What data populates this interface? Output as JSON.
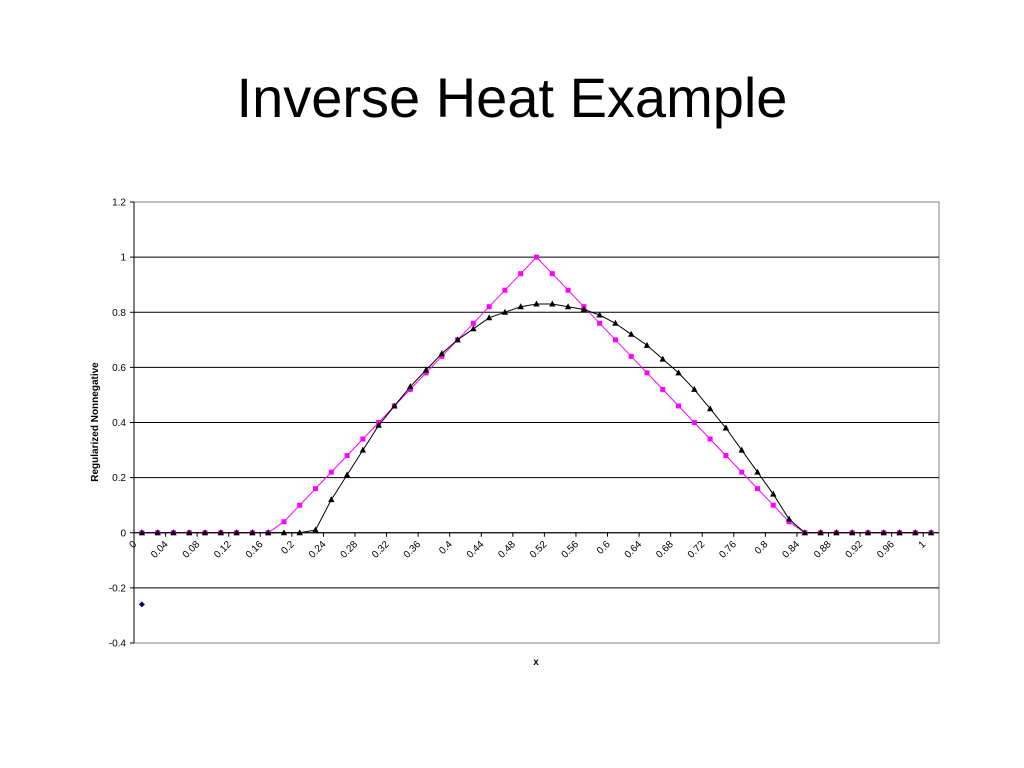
{
  "slide": {
    "title": "Inverse Heat Example"
  },
  "chart_data": {
    "type": "scatter",
    "xlabel": "x",
    "ylabel": "Regularized Nonnegative",
    "ylim": [
      -0.4,
      1.2
    ],
    "xlim": [
      0,
      1.02
    ],
    "grid": true,
    "legend": "none",
    "y_ticks": [
      "1.2",
      "1",
      "0.8",
      "0.6",
      "0.4",
      "0.2",
      "0",
      "-0.2",
      "-0.4"
    ],
    "x_ticks": [
      "0",
      "0.04",
      "0.08",
      "0.12",
      "0.16",
      "0.2",
      "0.24",
      "0.28",
      "0.32",
      "0.36",
      "0.4",
      "0.44",
      "0.48",
      "0.52",
      "0.56",
      "0.6",
      "0.64",
      "0.68",
      "0.72",
      "0.76",
      "0.8",
      "0.84",
      "0.88",
      "0.92",
      "0.96",
      "1"
    ],
    "x": [
      0.01,
      0.03,
      0.05,
      0.07,
      0.09,
      0.11,
      0.13,
      0.15,
      0.17,
      0.19,
      0.21,
      0.23,
      0.25,
      0.27,
      0.29,
      0.31,
      0.33,
      0.35,
      0.37,
      0.39,
      0.41,
      0.43,
      0.45,
      0.47,
      0.49,
      0.51,
      0.53,
      0.55,
      0.57,
      0.59,
      0.61,
      0.63,
      0.65,
      0.67,
      0.69,
      0.71,
      0.73,
      0.75,
      0.77,
      0.79,
      0.81,
      0.83,
      0.85,
      0.87,
      0.89,
      0.91,
      0.93,
      0.95,
      0.97,
      0.99,
      1.01
    ],
    "series": [
      {
        "color": "#ff00ff",
        "marker": "square",
        "values": [
          0,
          0,
          0,
          0,
          0,
          0,
          0,
          0,
          0,
          0.04,
          0.1,
          0.16,
          0.22,
          0.28,
          0.34,
          0.4,
          0.46,
          0.52,
          0.58,
          0.64,
          0.7,
          0.76,
          0.82,
          0.88,
          0.94,
          1.0,
          0.94,
          0.88,
          0.82,
          0.76,
          0.7,
          0.64,
          0.58,
          0.52,
          0.46,
          0.4,
          0.34,
          0.28,
          0.22,
          0.16,
          0.1,
          0.04,
          0,
          0,
          0,
          0,
          0,
          0,
          0,
          0,
          0
        ]
      },
      {
        "color": "#000000",
        "marker": "triangle",
        "values": [
          0,
          0,
          0,
          0,
          0,
          0,
          0,
          0,
          0,
          0,
          0,
          0.01,
          0.12,
          0.21,
          0.3,
          0.39,
          0.46,
          0.53,
          0.59,
          0.65,
          0.7,
          0.74,
          0.78,
          0.8,
          0.82,
          0.83,
          0.83,
          0.82,
          0.81,
          0.79,
          0.76,
          0.72,
          0.68,
          0.63,
          0.58,
          0.52,
          0.45,
          0.38,
          0.3,
          0.22,
          0.14,
          0.05,
          0,
          0,
          0,
          0,
          0,
          0,
          0,
          0,
          0
        ]
      },
      {
        "color": "#000080",
        "marker": "diamond",
        "x": [
          0.01
        ],
        "values": [
          -0.26
        ]
      }
    ]
  }
}
